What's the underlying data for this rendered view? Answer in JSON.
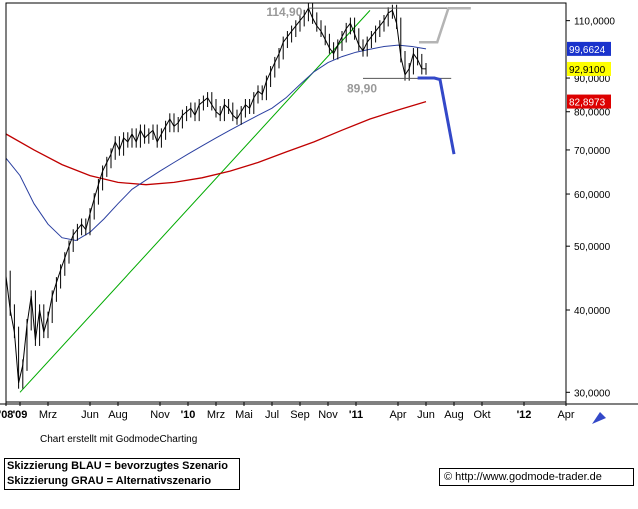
{
  "credit": "Chart erstellt mit GodmodeCharting",
  "legend_lines": [
    "Skizzierung BLAU = bevorzugtes Szenario",
    "Skizzierung GRAU = Alternativszenario"
  ],
  "source": {
    "symbol": "©",
    "url": "http://www.godmode-trader.de"
  },
  "colors": {
    "price": "#000000",
    "ma_short": "#2a3fa0",
    "ma_long": "#c00000",
    "trendline": "#00aa00",
    "scenario_blue": "#3348c8",
    "scenario_grey": "#b4b4b4",
    "label_blue_bg": "#1a33cc",
    "label_yellow_bg": "#ffff00",
    "label_red_bg": "#dd0000"
  },
  "chart_data": {
    "type": "line",
    "title": "",
    "xlabel": "",
    "ylabel": "",
    "y_scale": "log",
    "ylim": [
      29000,
      117000
    ],
    "xlim": [
      0,
      32
    ],
    "x_unit": "months since Dec 2008",
    "x_ticks": [
      {
        "t": 0,
        "label": "'08"
      },
      {
        "t": 1,
        "label": "'09"
      },
      {
        "t": 3,
        "label": "Mrz"
      },
      {
        "t": 6,
        "label": "Jun"
      },
      {
        "t": 8,
        "label": "Aug"
      },
      {
        "t": 11,
        "label": "Nov"
      },
      {
        "t": 13,
        "label": "'10"
      },
      {
        "t": 15,
        "label": "Mrz"
      },
      {
        "t": 17,
        "label": "Mai"
      },
      {
        "t": 19,
        "label": "Jul"
      },
      {
        "t": 21,
        "label": "Sep"
      },
      {
        "t": 23,
        "label": "Nov"
      },
      {
        "t": 25,
        "label": "'11"
      },
      {
        "t": 28,
        "label": "Apr"
      },
      {
        "t": 30,
        "label": "Jun"
      },
      {
        "t": 32,
        "label": "Aug"
      },
      {
        "t": 34,
        "label": "Okt"
      },
      {
        "t": 37,
        "label": "'12"
      },
      {
        "t": 40,
        "label": "Apr"
      }
    ],
    "y_ticks": [
      {
        "v": 110000,
        "label": "110,0000"
      },
      {
        "v": 90000,
        "label": "90,0000"
      },
      {
        "v": 80000,
        "label": "80,0000"
      },
      {
        "v": 70000,
        "label": "70,0000"
      },
      {
        "v": 60000,
        "label": "60,0000"
      },
      {
        "v": 50000,
        "label": "50,0000"
      },
      {
        "v": 40000,
        "label": "40,0000"
      },
      {
        "v": 30000,
        "label": "30,0000"
      }
    ],
    "price": [
      [
        0.0,
        45000
      ],
      [
        0.3,
        40000
      ],
      [
        0.6,
        37000
      ],
      [
        0.9,
        31000
      ],
      [
        1.2,
        33000
      ],
      [
        1.5,
        38000
      ],
      [
        1.8,
        42000
      ],
      [
        2.1,
        36000
      ],
      [
        2.4,
        40000
      ],
      [
        2.7,
        37000
      ],
      [
        3.0,
        39000
      ],
      [
        3.3,
        42000
      ],
      [
        3.6,
        44000
      ],
      [
        3.9,
        46000
      ],
      [
        4.2,
        48000
      ],
      [
        4.5,
        50000
      ],
      [
        4.8,
        52000
      ],
      [
        5.1,
        53000
      ],
      [
        5.4,
        54000
      ],
      [
        5.7,
        53000
      ],
      [
        6.0,
        56000
      ],
      [
        6.3,
        59000
      ],
      [
        6.6,
        62000
      ],
      [
        6.9,
        65000
      ],
      [
        7.2,
        67000
      ],
      [
        7.5,
        69000
      ],
      [
        7.8,
        72000
      ],
      [
        8.1,
        70000
      ],
      [
        8.4,
        73000
      ],
      [
        8.7,
        72000
      ],
      [
        9.0,
        74000
      ],
      [
        9.3,
        72000
      ],
      [
        9.6,
        75000
      ],
      [
        9.9,
        73000
      ],
      [
        10.2,
        74000
      ],
      [
        10.5,
        75000
      ],
      [
        10.8,
        72000
      ],
      [
        11.1,
        74000
      ],
      [
        11.4,
        76000
      ],
      [
        11.7,
        78000
      ],
      [
        12.0,
        76000
      ],
      [
        12.3,
        77000
      ],
      [
        12.6,
        79000
      ],
      [
        12.9,
        80000
      ],
      [
        13.2,
        81000
      ],
      [
        13.5,
        79000
      ],
      [
        13.8,
        82000
      ],
      [
        14.1,
        83000
      ],
      [
        14.4,
        84000
      ],
      [
        14.7,
        82000
      ],
      [
        15.0,
        80000
      ],
      [
        15.3,
        79000
      ],
      [
        15.6,
        82000
      ],
      [
        15.9,
        81000
      ],
      [
        16.2,
        79000
      ],
      [
        16.5,
        78000
      ],
      [
        16.8,
        80000
      ],
      [
        17.1,
        82000
      ],
      [
        17.4,
        81000
      ],
      [
        17.7,
        84000
      ],
      [
        18.0,
        86000
      ],
      [
        18.3,
        85000
      ],
      [
        18.6,
        89000
      ],
      [
        18.9,
        92000
      ],
      [
        19.2,
        95000
      ],
      [
        19.5,
        98000
      ],
      [
        19.8,
        102000
      ],
      [
        20.1,
        104000
      ],
      [
        20.4,
        106000
      ],
      [
        20.7,
        108000
      ],
      [
        21.0,
        110000
      ],
      [
        21.3,
        112000
      ],
      [
        21.6,
        114900
      ],
      [
        21.9,
        111000
      ],
      [
        22.2,
        108000
      ],
      [
        22.5,
        106000
      ],
      [
        22.8,
        103000
      ],
      [
        23.1,
        100000
      ],
      [
        23.4,
        98000
      ],
      [
        23.7,
        101000
      ],
      [
        24.0,
        104000
      ],
      [
        24.3,
        107000
      ],
      [
        24.6,
        109000
      ],
      [
        24.9,
        105000
      ],
      [
        25.2,
        101000
      ],
      [
        25.5,
        99000
      ],
      [
        25.8,
        102000
      ],
      [
        26.1,
        104000
      ],
      [
        26.4,
        106000
      ],
      [
        26.7,
        108000
      ],
      [
        27.0,
        110000
      ],
      [
        27.3,
        113000
      ],
      [
        27.6,
        114000
      ],
      [
        27.9,
        109000
      ],
      [
        28.2,
        97000
      ],
      [
        28.5,
        91000
      ],
      [
        28.8,
        93000
      ],
      [
        29.1,
        98000
      ],
      [
        29.4,
        96000
      ],
      [
        29.7,
        93000
      ],
      [
        30.0,
        92910
      ]
    ],
    "ma_short": [
      [
        0.0,
        68000
      ],
      [
        1.0,
        64000
      ],
      [
        2.0,
        58000
      ],
      [
        3.0,
        54000
      ],
      [
        4.0,
        51500
      ],
      [
        5.0,
        51000
      ],
      [
        6.0,
        52500
      ],
      [
        7.0,
        55000
      ],
      [
        8.0,
        58000
      ],
      [
        9.0,
        61000
      ],
      [
        10.0,
        63000
      ],
      [
        11.0,
        65000
      ],
      [
        12.0,
        67000
      ],
      [
        13.0,
        69000
      ],
      [
        14.0,
        71000
      ],
      [
        15.0,
        73000
      ],
      [
        16.0,
        75000
      ],
      [
        17.0,
        77000
      ],
      [
        18.0,
        79000
      ],
      [
        19.0,
        81000
      ],
      [
        20.0,
        84000
      ],
      [
        21.0,
        88000
      ],
      [
        22.0,
        92000
      ],
      [
        23.0,
        95000
      ],
      [
        24.0,
        97000
      ],
      [
        25.0,
        98500
      ],
      [
        26.0,
        99500
      ],
      [
        27.0,
        100500
      ],
      [
        28.0,
        101000
      ],
      [
        29.0,
        100500
      ],
      [
        30.0,
        99662
      ]
    ],
    "ma_long": [
      [
        0.0,
        74000
      ],
      [
        2.0,
        70000
      ],
      [
        4.0,
        66500
      ],
      [
        6.0,
        64000
      ],
      [
        8.0,
        62500
      ],
      [
        10.0,
        62000
      ],
      [
        12.0,
        62500
      ],
      [
        14.0,
        63500
      ],
      [
        16.0,
        65000
      ],
      [
        18.0,
        67000
      ],
      [
        20.0,
        69500
      ],
      [
        22.0,
        72000
      ],
      [
        24.0,
        75000
      ],
      [
        26.0,
        78000
      ],
      [
        28.0,
        80500
      ],
      [
        30.0,
        82897
      ]
    ],
    "trendline": [
      [
        1.0,
        30000
      ],
      [
        26.0,
        114000
      ]
    ],
    "horizontal_levels": [
      {
        "value": 114900,
        "label": "114,90",
        "from": 21.6,
        "to": 31.5
      },
      {
        "value": 89900,
        "label": "89,90",
        "from": 25.5,
        "to": 31.8
      }
    ],
    "scenario_blue": [
      [
        29.4,
        90000
      ],
      [
        30.6,
        90000
      ],
      [
        31.0,
        89500
      ],
      [
        32.0,
        69000
      ]
    ],
    "scenario_grey": [
      [
        29.5,
        102000
      ],
      [
        30.8,
        102000
      ],
      [
        31.6,
        114900
      ],
      [
        33.2,
        114900
      ]
    ],
    "value_labels": [
      {
        "value": 99662,
        "label": "99,6624",
        "style": "blue"
      },
      {
        "value": 92910,
        "label": "92,9100",
        "style": "yellow"
      },
      {
        "value": 82897,
        "label": "82,8973",
        "style": "red"
      }
    ]
  }
}
